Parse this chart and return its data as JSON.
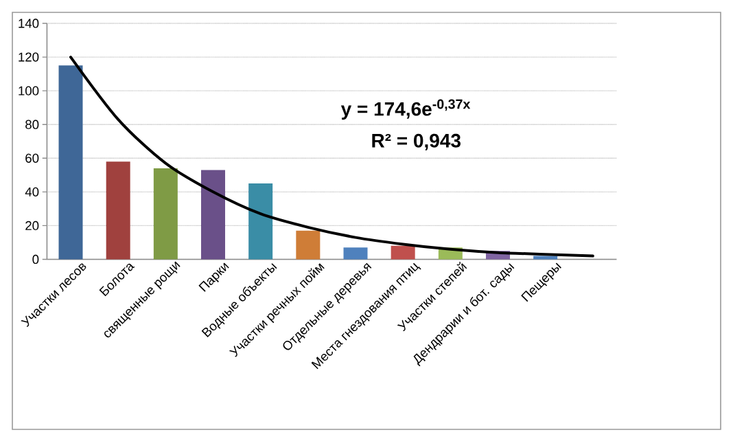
{
  "chart_data": {
    "type": "bar",
    "categories": [
      "Участки лесов",
      "Болота",
      "священные рощи",
      "Парки",
      "Водные объекты",
      "Участки речных пойм",
      "Отдельные деревья",
      "Места гнездования птиц",
      "Участки степей",
      "Дендрарии и бот. сады",
      "Пещеры",
      null
    ],
    "series": [
      {
        "values": [
          115,
          58,
          54,
          53,
          45,
          17,
          7,
          8,
          7,
          5,
          2,
          null
        ],
        "colors": [
          "#3f6797",
          "#a0413e",
          "#7f9b45",
          "#6a5089",
          "#3a8da6",
          "#cf7d37",
          "#4f81bd",
          "#c0504d",
          "#9bbb59",
          "#8064a2",
          "#4f81bd",
          "#4bacc6"
        ]
      },
      {
        "type": "line",
        "color": "#000000",
        "values": [
          120,
          83,
          57,
          40,
          27,
          19,
          13,
          9,
          6,
          4,
          3,
          2
        ]
      }
    ],
    "ylim": [
      0,
      140
    ],
    "yticks": [
      0,
      20,
      40,
      60,
      80,
      100,
      120,
      140
    ],
    "grid": "y",
    "annotations": [
      "y = 174,6e$^{-0,37x}$",
      "R² = 0,943"
    ]
  }
}
